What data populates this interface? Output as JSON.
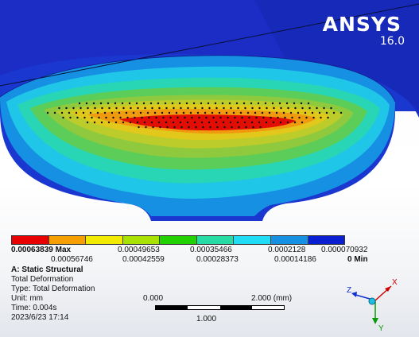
{
  "logo": {
    "brand": "ANSYS",
    "version": "16.0"
  },
  "legend": {
    "colors": [
      "#e80000",
      "#f5a000",
      "#f2ea00",
      "#a9e200",
      "#24d100",
      "#27dba5",
      "#20dcf5",
      "#1690e3",
      "#0a1fd2"
    ],
    "labels_top": [
      "0.00063839 Max",
      "0.00049653",
      "0.00035466",
      "0.0002128",
      "0.000070932"
    ],
    "labels_bottom": [
      "0.00056746",
      "0.00042559",
      "0.00028373",
      "0.00014186",
      "0 Min"
    ]
  },
  "info": {
    "title": "A: Static Structural",
    "result": "Total Deformation",
    "type": "Type: Total Deformation",
    "unit": "Unit: mm",
    "time": "Time: 0.004s",
    "date": "2023/6/23 17:14"
  },
  "scale": {
    "left": "0.000",
    "right": "2.000 (mm)",
    "mid": "1.000"
  },
  "triad": {
    "x": "X",
    "y": "Y",
    "z": "Z"
  },
  "model_colors": {
    "blue": "#1a37cf",
    "dark_blue": "#10239a",
    "light_blue": "#1fb3e6",
    "cyan": "#2ad4d2",
    "background": "#ffffff"
  }
}
